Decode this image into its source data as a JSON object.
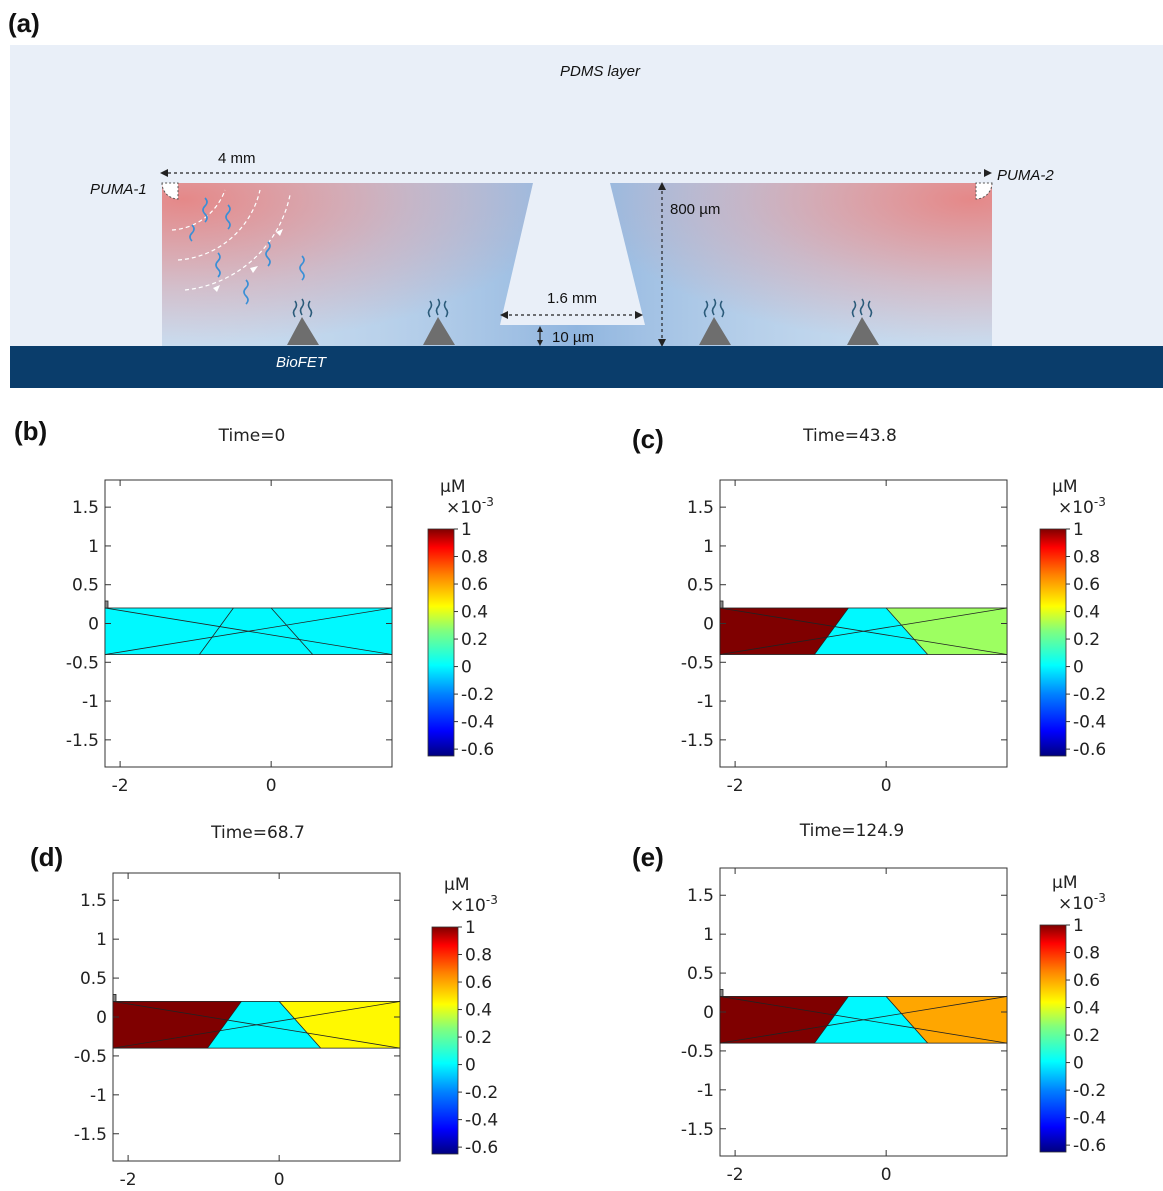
{
  "diagram": {
    "panel_label": "(a)",
    "pdms_label": "PDMS layer",
    "width_label": "4 mm",
    "puma1_label": "PUMA-1",
    "puma2_label": "PUMA-2",
    "height_label": "800 µm",
    "channel_label": "1.6 mm",
    "gap_label": "10 µm",
    "substrate_label": "BioFET",
    "colors": {
      "pdms": "#e9eff8",
      "channel": "#c9dcef",
      "channel_blue": "#6f9fd6",
      "puma_red": "#e58888",
      "substrate": "#0a3d6b",
      "sensor": "#6e6e6e",
      "strand": "#3a8fd6"
    }
  },
  "chart_data": [
    {
      "type": "heatmap",
      "panel": "(b)",
      "title": "Time=0",
      "unit": "µM",
      "multiplier": "×10-3",
      "x_ticks": [
        "-2",
        "0"
      ],
      "y_ticks": [
        "1.5",
        "1",
        "0.5",
        "0",
        "-0.5",
        "-1",
        "-1.5"
      ],
      "colorbar_ticks": [
        "1",
        "0.8",
        "0.6",
        "0.4",
        "0.2",
        "0",
        "-0.2",
        "-0.4",
        "-0.6"
      ],
      "colorbar_range": [
        -0.65,
        1.0
      ],
      "domain": {
        "x": [
          -2.2,
          1.6
        ],
        "y": [
          -0.4,
          0.2
        ]
      },
      "regions": {
        "left": 0,
        "center": 0,
        "right": 0
      }
    },
    {
      "type": "heatmap",
      "panel": "(c)",
      "title": "Time=43.8",
      "unit": "µM",
      "multiplier": "×10-3",
      "x_ticks": [
        "-2",
        "0"
      ],
      "y_ticks": [
        "1.5",
        "1",
        "0.5",
        "0",
        "-0.5",
        "-1",
        "-1.5"
      ],
      "colorbar_ticks": [
        "1",
        "0.8",
        "0.6",
        "0.4",
        "0.2",
        "0",
        "-0.2",
        "-0.4",
        "-0.6"
      ],
      "colorbar_range": [
        -0.65,
        1.0
      ],
      "domain": {
        "x": [
          -2.2,
          1.6
        ],
        "y": [
          -0.4,
          0.2
        ]
      },
      "regions": {
        "left": 1.0,
        "center": 0,
        "right": 0.3
      }
    },
    {
      "type": "heatmap",
      "panel": "(d)",
      "title": "Time=68.7",
      "unit": "µM",
      "multiplier": "×10-3",
      "x_ticks": [
        "-2",
        "0"
      ],
      "y_ticks": [
        "1.5",
        "1",
        "0.5",
        "0",
        "-0.5",
        "-1",
        "-1.5"
      ],
      "colorbar_ticks": [
        "1",
        "0.8",
        "0.6",
        "0.4",
        "0.2",
        "0",
        "-0.2",
        "-0.4",
        "-0.6"
      ],
      "colorbar_range": [
        -0.65,
        1.0
      ],
      "domain": {
        "x": [
          -2.2,
          1.6
        ],
        "y": [
          -0.4,
          0.2
        ]
      },
      "regions": {
        "left": 1.0,
        "center": 0,
        "right": 0.45
      }
    },
    {
      "type": "heatmap",
      "panel": "(e)",
      "title": "Time=124.9",
      "unit": "µM",
      "multiplier": "×10-3",
      "x_ticks": [
        "-2",
        "0"
      ],
      "y_ticks": [
        "1.5",
        "1",
        "0.5",
        "0",
        "-0.5",
        "-1",
        "-1.5"
      ],
      "colorbar_ticks": [
        "1",
        "0.8",
        "0.6",
        "0.4",
        "0.2",
        "0",
        "-0.2",
        "-0.4",
        "-0.6"
      ],
      "colorbar_range": [
        -0.65,
        1.0
      ],
      "domain": {
        "x": [
          -2.2,
          1.6
        ],
        "y": [
          -0.4,
          0.2
        ]
      },
      "regions": {
        "left": 1.0,
        "center": 0,
        "right": 0.6
      }
    }
  ]
}
